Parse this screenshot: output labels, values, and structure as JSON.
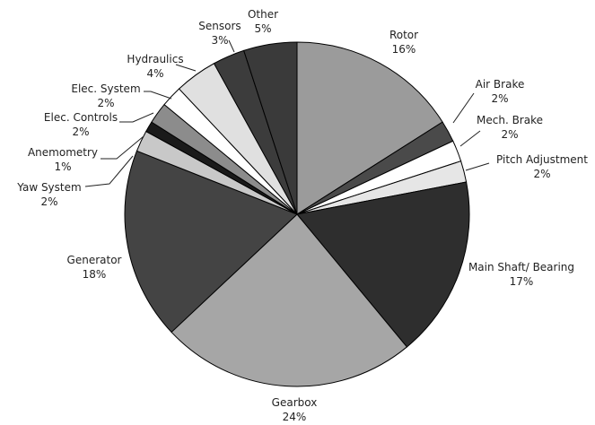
{
  "chart_data": {
    "type": "pie",
    "title": "",
    "legend": "none",
    "slices": [
      {
        "label": "Rotor",
        "value_label": "16%",
        "value": 16,
        "color": "#9b9b9b"
      },
      {
        "label": "Air Brake",
        "value_label": "2%",
        "value": 2,
        "color": "#4a4a4a"
      },
      {
        "label": "Mech. Brake",
        "value_label": "2%",
        "value": 2,
        "color": "#ffffff"
      },
      {
        "label": "Pitch Adjustment",
        "value_label": "2%",
        "value": 2,
        "color": "#e6e6e6"
      },
      {
        "label": "Main Shaft/ Bearing",
        "value_label": "17%",
        "value": 17,
        "color": "#2e2e2e"
      },
      {
        "label": "Gearbox",
        "value_label": "24%",
        "value": 24,
        "color": "#a6a6a6"
      },
      {
        "label": "Generator",
        "value_label": "18%",
        "value": 18,
        "color": "#444444"
      },
      {
        "label": "Yaw System",
        "value_label": "2%",
        "value": 2,
        "color": "#c8c8c8"
      },
      {
        "label": "Anemometry",
        "value_label": "1%",
        "value": 1,
        "color": "#1a1a1a"
      },
      {
        "label": "Elec. Controls",
        "value_label": "2%",
        "value": 2,
        "color": "#8c8c8c"
      },
      {
        "label": "Elec. System",
        "value_label": "2%",
        "value": 2,
        "color": "#ffffff"
      },
      {
        "label": "Hydraulics",
        "value_label": "4%",
        "value": 4,
        "color": "#e0e0e0"
      },
      {
        "label": "Sensors",
        "value_label": "3%",
        "value": 3,
        "color": "#3c3c3c"
      },
      {
        "label": "Other",
        "value_label": "5%",
        "value": 5,
        "color": "#3a3a3a"
      }
    ]
  }
}
